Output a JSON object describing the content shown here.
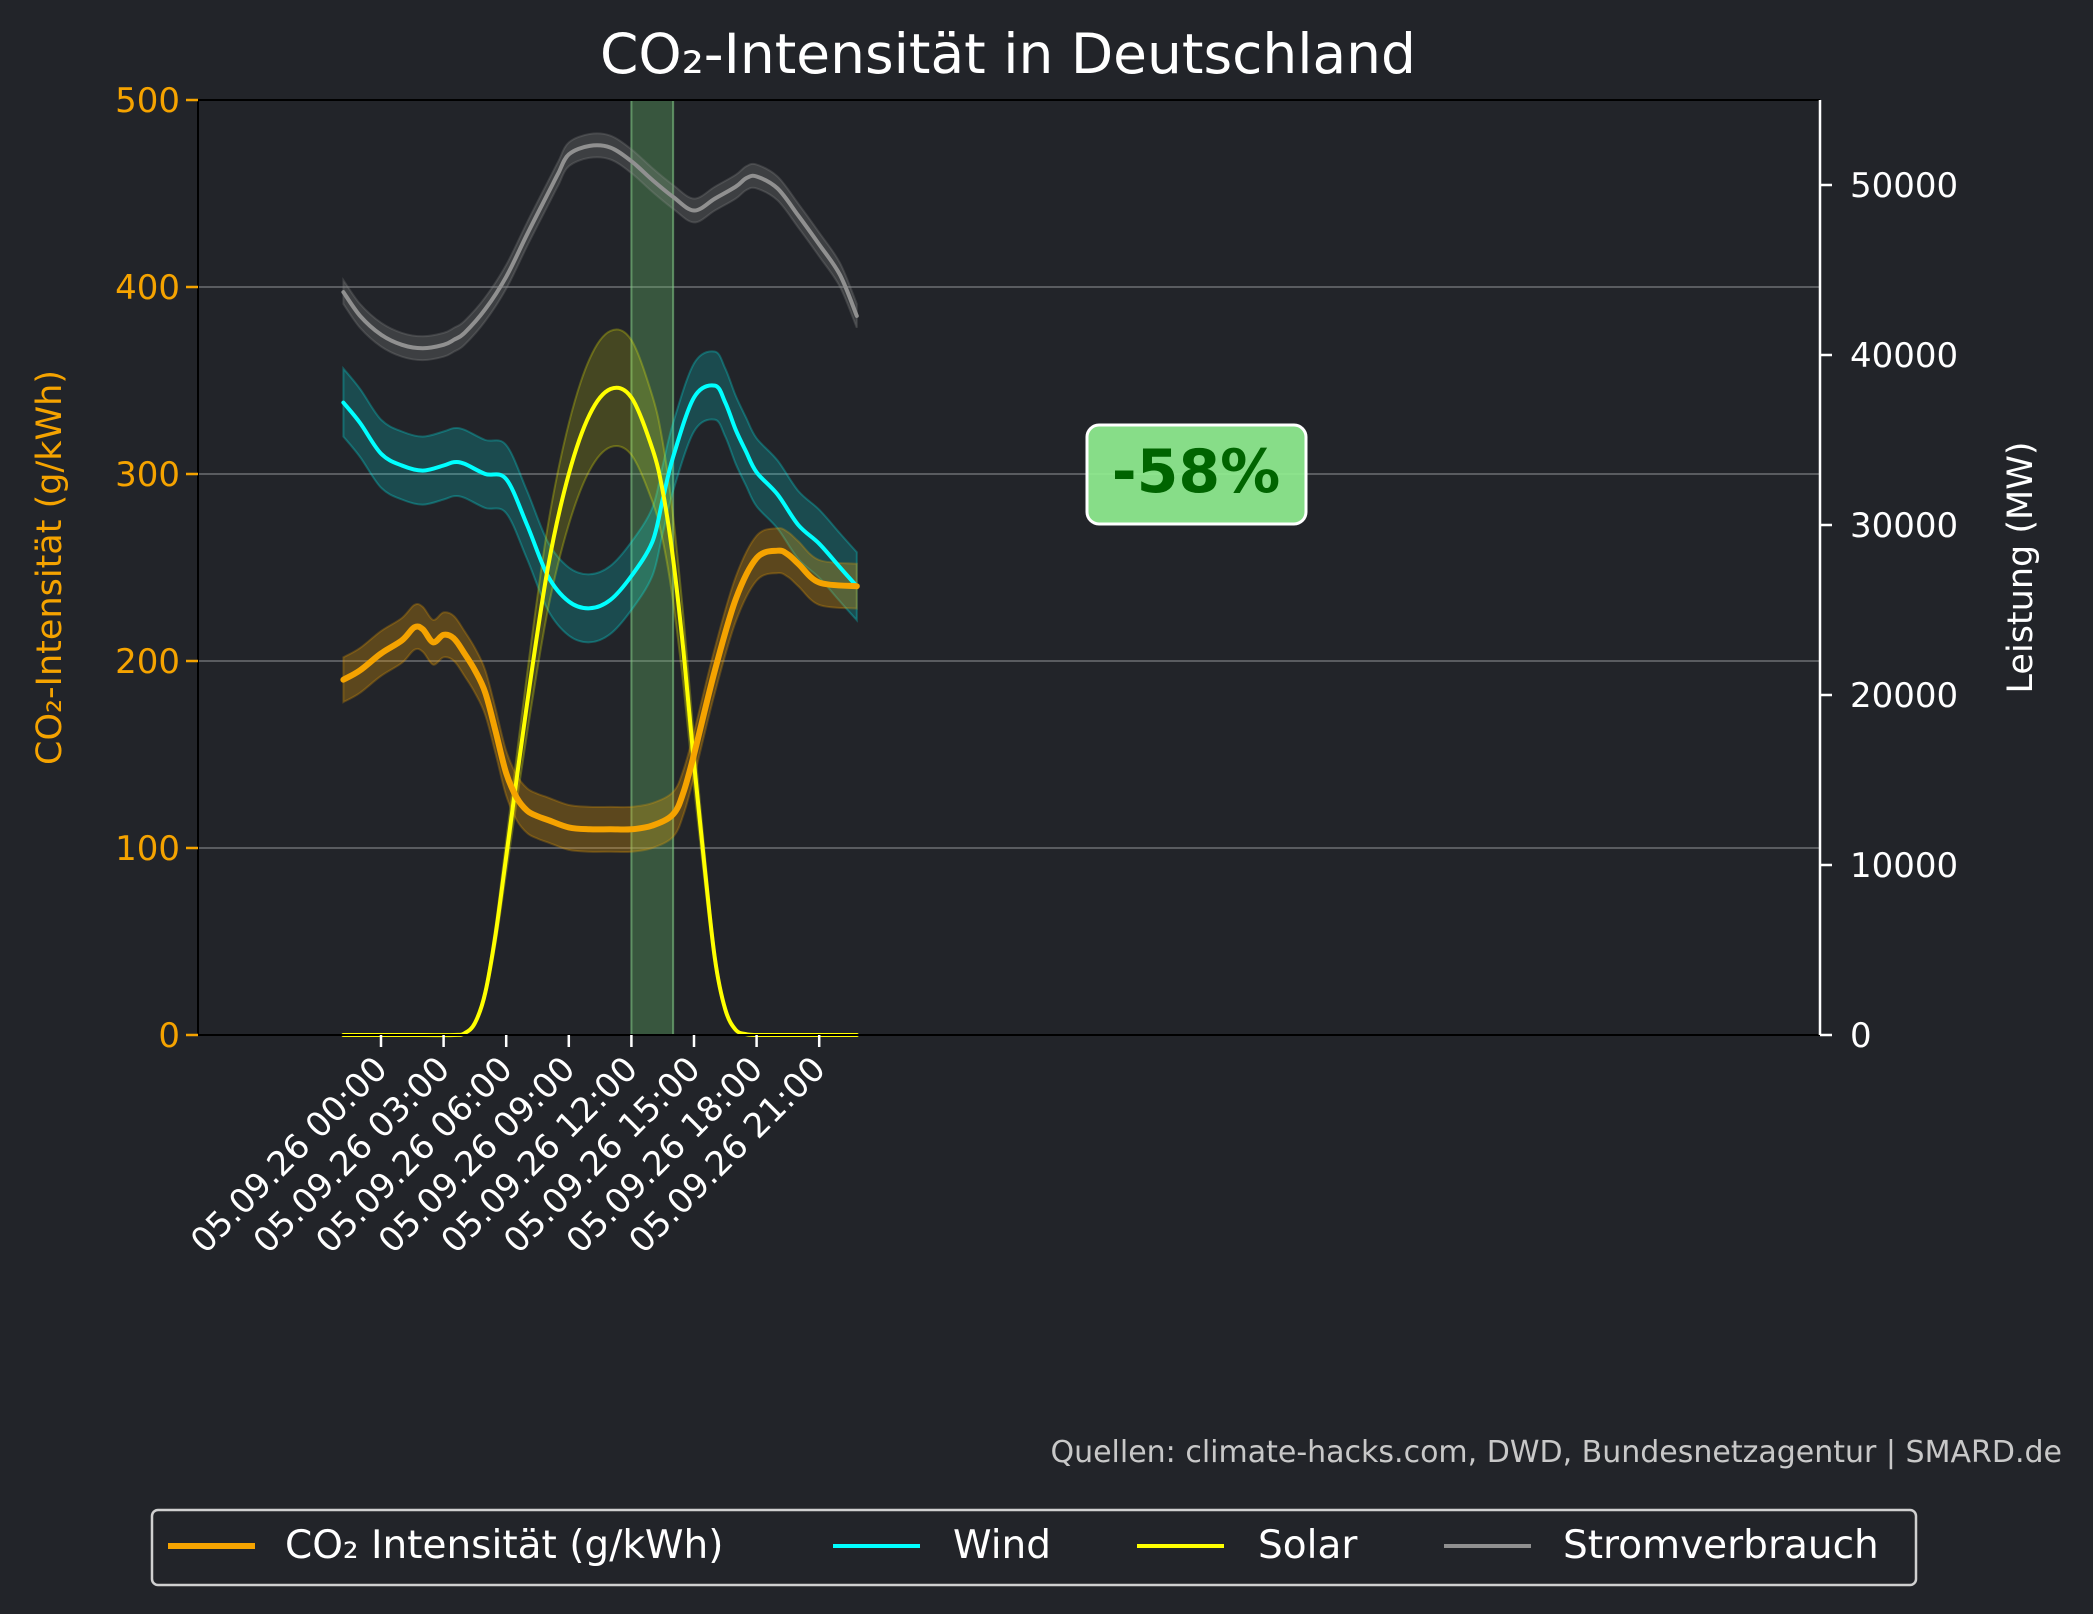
{
  "chart_data": {
    "type": "line",
    "title": "CO₂-Intensität in Deutschland",
    "ylabel_left": "CO₂-Intensität (g/kWh)",
    "ylabel_right": "Leistung (MW)",
    "ylim_left": [
      0,
      500
    ],
    "ylim_right": [
      0,
      55000
    ],
    "yticks_left": [
      "0",
      "100",
      "200",
      "300",
      "400",
      "500"
    ],
    "yticks_right": [
      "0",
      "10000",
      "20000",
      "30000",
      "40000",
      "50000"
    ],
    "x_ticks": [
      "05.09.26 00:00",
      "05.09.26 03:00",
      "05.09.26 06:00",
      "05.09.26 09:00",
      "05.09.26 12:00",
      "05.09.26 15:00",
      "05.09.26 18:00",
      "05.09.26 21:00"
    ],
    "x_hours": [
      -1.8,
      -1,
      0,
      1,
      2,
      3,
      3.5,
      4,
      4.5,
      5,
      5.5,
      6,
      6.5,
      7,
      8,
      9,
      10,
      11,
      12,
      13,
      14,
      15,
      16,
      16.5,
      17,
      18,
      19,
      20,
      21,
      22.8
    ],
    "highlight_window": [
      "05.09.26 12:00",
      "05.09.26 14:00"
    ],
    "annotation": "-58%",
    "grid": "horizontal",
    "legend_position": "bottom",
    "source": "Quellen: climate-hacks.com, DWD, Bundesnetzagentur | SMARD.de",
    "series": [
      {
        "name": "CO₂ Intensität (g/kWh)",
        "axis": "left",
        "color": "#f5a300",
        "x": [
          -1.8,
          -1,
          0,
          1,
          1.6,
          2,
          2.5,
          3,
          3.5,
          4,
          4.5,
          5,
          5.5,
          6,
          6.5,
          7,
          7.5,
          8,
          9,
          10,
          11,
          12,
          13,
          14,
          14.5,
          15,
          16,
          17,
          18,
          19,
          19.5,
          20,
          21,
          22.8
        ],
        "values": [
          190,
          195,
          204,
          211,
          218,
          217,
          210,
          214,
          212,
          204,
          195,
          183,
          162,
          140,
          127,
          120,
          117,
          115,
          111,
          110,
          110,
          110,
          112,
          118,
          130,
          150,
          195,
          233,
          255,
          259,
          257,
          252,
          242,
          240
        ]
      },
      {
        "name": "Wind",
        "axis": "right",
        "color": "#00ffff",
        "x": [
          -1.8,
          -1,
          0,
          1,
          2,
          3,
          3.5,
          4,
          5,
          6,
          7,
          8,
          9,
          10,
          11,
          12,
          13,
          13.5,
          14,
          15,
          16,
          16.5,
          17,
          17.5,
          18,
          19,
          20,
          21,
          22,
          22.8
        ],
        "values": [
          37200,
          36000,
          34200,
          33500,
          33200,
          33500,
          33700,
          33600,
          33000,
          32700,
          30000,
          27000,
          25500,
          25100,
          25600,
          27000,
          29000,
          31500,
          34000,
          37500,
          38200,
          37200,
          35600,
          34300,
          33100,
          31800,
          30000,
          28900,
          27500,
          26400
        ]
      },
      {
        "name": "Solar",
        "axis": "right",
        "color": "#ffff00",
        "x": [
          -1.8,
          0,
          2,
          3.5,
          4,
          4.5,
          5,
          5.5,
          6,
          7,
          8,
          9,
          10,
          11,
          12,
          13,
          13.5,
          14,
          14.5,
          15,
          15.5,
          16,
          16.5,
          17,
          17.5,
          18,
          20,
          22.8
        ],
        "values": [
          0,
          0,
          0,
          0,
          100,
          700,
          2500,
          6000,
          10500,
          19500,
          27500,
          33000,
          36500,
          38000,
          37500,
          34500,
          32000,
          28000,
          22500,
          16000,
          10000,
          4500,
          1500,
          300,
          50,
          0,
          0,
          0
        ]
      },
      {
        "name": "Stromverbrauch",
        "axis": "right",
        "color": "#909090",
        "x": [
          -1.8,
          -1,
          0,
          1,
          2,
          3,
          3.5,
          4,
          5,
          6,
          7,
          8,
          8.5,
          9,
          10,
          11,
          12,
          13,
          14,
          15,
          16,
          17,
          17.5,
          18,
          19,
          20,
          21,
          22,
          22.8
        ],
        "values": [
          43700,
          42300,
          41200,
          40600,
          40400,
          40600,
          40900,
          41300,
          42700,
          44600,
          47100,
          49500,
          50700,
          51800,
          52300,
          52200,
          51400,
          50300,
          49300,
          48500,
          49200,
          49900,
          50400,
          50500,
          49800,
          48200,
          46500,
          44700,
          42300
        ]
      }
    ]
  }
}
